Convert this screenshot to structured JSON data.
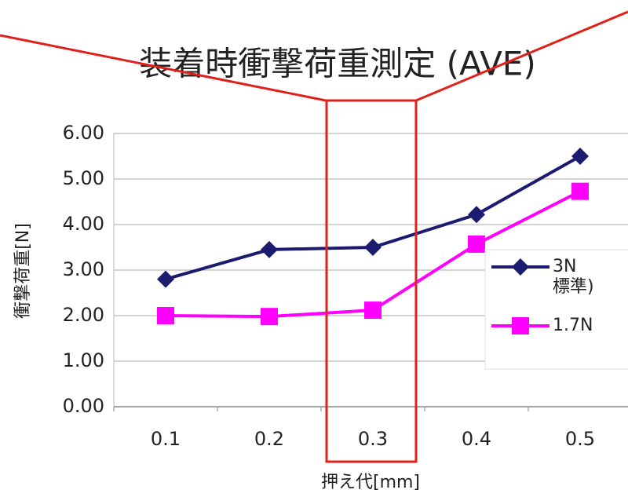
{
  "chart_data": {
    "type": "line",
    "title": "装着時衝撃荷重測定 (AVE)",
    "y_label": "衝撃荷重[N]",
    "x_label": "押え代[mm]",
    "categories": [
      "0.1",
      "0.2",
      "0.3",
      "0.4",
      "0.5"
    ],
    "series": [
      {
        "name": "3N\n標準)",
        "color": "#1b1b6f",
        "marker": "diamond",
        "values": [
          2.8,
          3.45,
          3.5,
          4.22,
          5.5
        ]
      },
      {
        "name": "1.7N",
        "color": "#ff00ff",
        "marker": "square",
        "values": [
          2.0,
          1.98,
          2.12,
          3.57,
          4.73
        ]
      }
    ],
    "ylim": [
      0,
      6
    ],
    "yticks": [
      {
        "value": 0,
        "label": "0.00"
      },
      {
        "value": 1,
        "label": "1.00"
      },
      {
        "value": 2,
        "label": "2.00"
      },
      {
        "value": 3,
        "label": "3.00"
      },
      {
        "value": 4,
        "label": "4.00"
      },
      {
        "value": 5,
        "label": "5.00"
      },
      {
        "value": 6,
        "label": "6.00"
      }
    ],
    "grid": true,
    "legend": "right"
  }
}
